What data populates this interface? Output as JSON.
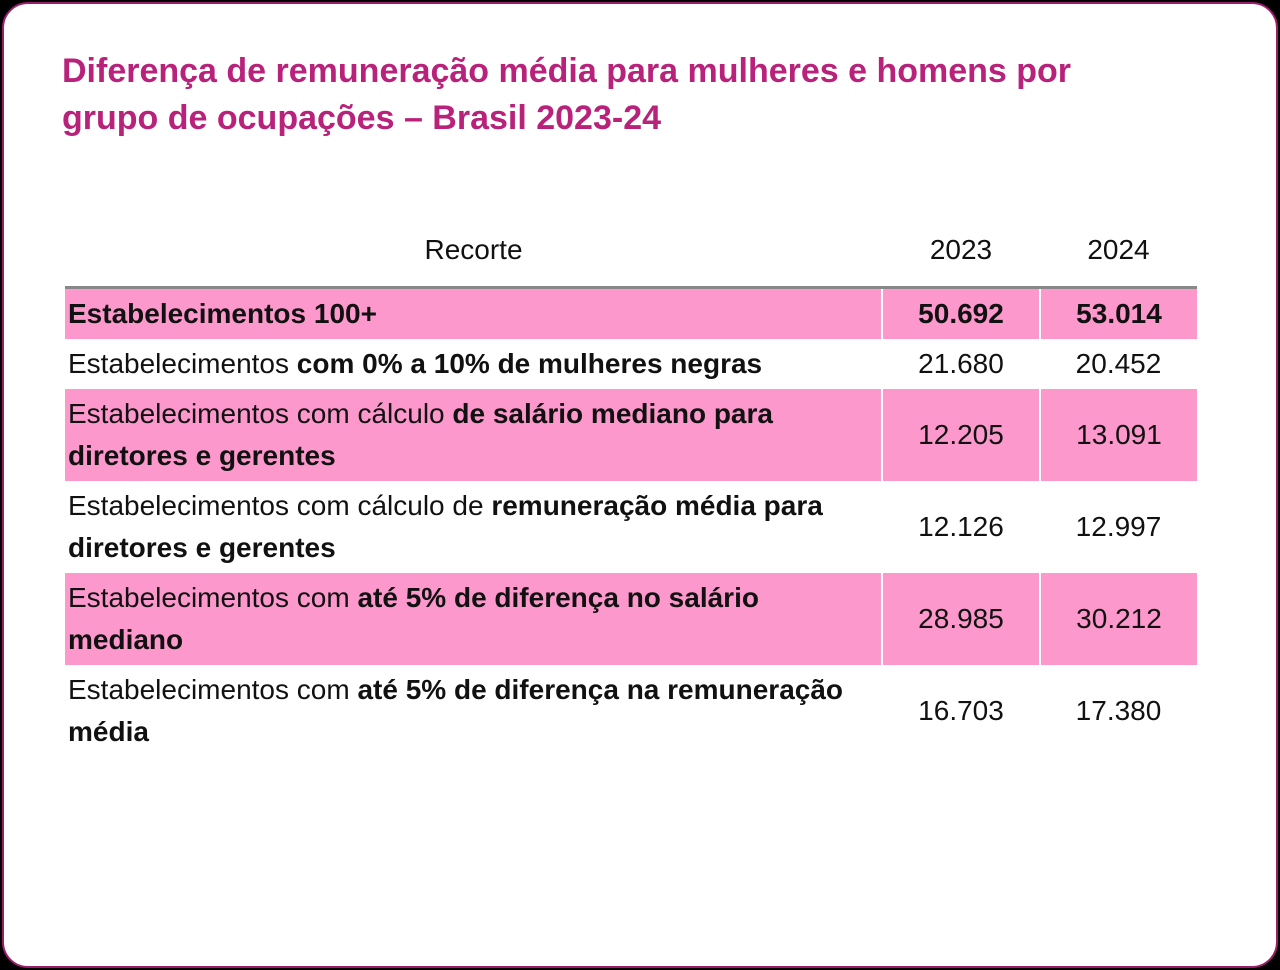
{
  "header": {
    "title": "Diferença de remuneração média para mulheres e homens por grupo de ocupações – Brasil 2023-24"
  },
  "table": {
    "columns": [
      "Recorte",
      "2023",
      "2024"
    ],
    "rows": [
      {
        "label": [
          {
            "text": "Estabelecimentos 100+",
            "bold": true
          }
        ],
        "values": [
          "50.692",
          "53.014"
        ],
        "bold": true,
        "highlight": true
      },
      {
        "label": [
          {
            "text": "Estabelecimentos ",
            "bold": false
          },
          {
            "text": "com 0% a 10% de mulheres negras",
            "bold": true
          }
        ],
        "values": [
          "21.680",
          "20.452"
        ],
        "bold": false,
        "highlight": false
      },
      {
        "label": [
          {
            "text": "Estabelecimentos com cálculo ",
            "bold": false
          },
          {
            "text": "de salário mediano para diretores e gerentes",
            "bold": true
          }
        ],
        "values": [
          "12.205",
          "13.091"
        ],
        "bold": false,
        "highlight": true
      },
      {
        "label": [
          {
            "text": "Estabelecimentos com cálculo de ",
            "bold": false
          },
          {
            "text": "remuneração média para diretores e gerentes",
            "bold": true
          }
        ],
        "values": [
          "12.126",
          "12.997"
        ],
        "bold": false,
        "highlight": false
      },
      {
        "label": [
          {
            "text": "Estabelecimentos com ",
            "bold": false
          },
          {
            "text": "até 5% de diferença no salário mediano",
            "bold": true
          }
        ],
        "values": [
          "28.985",
          "30.212"
        ],
        "bold": false,
        "highlight": true
      },
      {
        "label": [
          {
            "text": "Estabelecimentos com ",
            "bold": false
          },
          {
            "text": "até 5% de diferença na remuneração média",
            "bold": true
          }
        ],
        "values": [
          "16.703",
          "17.380"
        ],
        "bold": false,
        "highlight": false
      }
    ]
  }
}
